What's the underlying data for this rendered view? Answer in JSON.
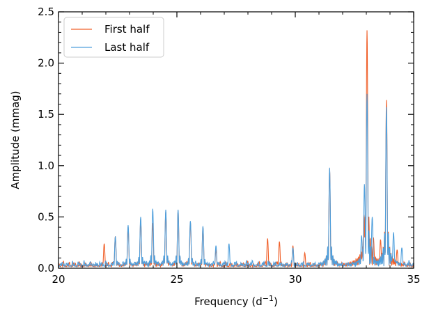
{
  "chart_data": {
    "type": "line",
    "xlabel": "Frequency (d",
    "xlabel_sup": "−1",
    "xlabel_end": ")",
    "ylabel": "Amplitude (mmag)",
    "xlim": [
      20,
      35
    ],
    "ylim": [
      0,
      2.5
    ],
    "x_ticks": [
      "20",
      "25",
      "30",
      "35"
    ],
    "y_ticks": [
      "0.0",
      "0.5",
      "1.0",
      "1.5",
      "2.0",
      "2.5"
    ],
    "legend_position": "top-left",
    "grid": false,
    "series": [
      {
        "name": "First half",
        "color": "#f0602a",
        "noise_level": 0.06,
        "peaks": [
          [
            21.93,
            0.24
          ],
          [
            22.4,
            0.31
          ],
          [
            22.94,
            0.4
          ],
          [
            23.47,
            0.47
          ],
          [
            23.98,
            0.44
          ],
          [
            24.53,
            0.55
          ],
          [
            25.05,
            0.56
          ],
          [
            25.57,
            0.45
          ],
          [
            26.1,
            0.4
          ],
          [
            26.65,
            0.18
          ],
          [
            28.83,
            0.29
          ],
          [
            29.33,
            0.26
          ],
          [
            29.9,
            0.22
          ],
          [
            30.4,
            0.15
          ],
          [
            31.45,
            0.97
          ],
          [
            32.9,
            0.52
          ],
          [
            33.03,
            2.32
          ],
          [
            33.3,
            0.3
          ],
          [
            33.6,
            0.28
          ],
          [
            33.85,
            1.64
          ],
          [
            34.3,
            0.18
          ]
        ]
      },
      {
        "name": "Last half",
        "color": "#4f9fdc",
        "noise_level": 0.07,
        "peaks": [
          [
            22.4,
            0.31
          ],
          [
            22.94,
            0.42
          ],
          [
            23.47,
            0.5
          ],
          [
            23.98,
            0.58
          ],
          [
            24.53,
            0.57
          ],
          [
            25.05,
            0.57
          ],
          [
            25.57,
            0.46
          ],
          [
            26.1,
            0.41
          ],
          [
            26.65,
            0.22
          ],
          [
            27.2,
            0.24
          ],
          [
            29.9,
            0.2
          ],
          [
            31.45,
            0.98
          ],
          [
            32.8,
            0.32
          ],
          [
            32.92,
            0.82
          ],
          [
            33.03,
            1.7
          ],
          [
            33.25,
            0.5
          ],
          [
            33.85,
            1.57
          ],
          [
            34.15,
            0.35
          ],
          [
            34.5,
            0.2
          ]
        ]
      }
    ]
  }
}
